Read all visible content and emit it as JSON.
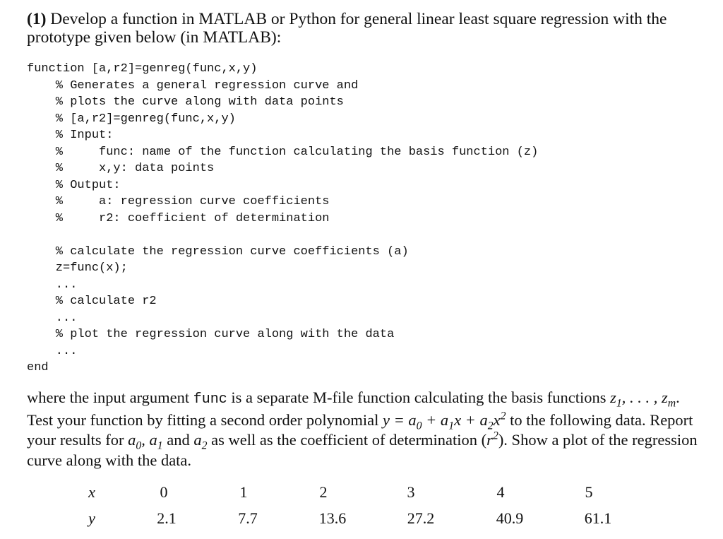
{
  "heading": {
    "number": "(1)",
    "text": "Develop a function in MATLAB or Python for general linear least square regression with the prototype given below (in MATLAB):"
  },
  "code_lines": [
    "function [a,r2]=genreg(func,x,y)",
    "    % Generates a general regression curve and",
    "    % plots the curve along with data points",
    "    % [a,r2]=genreg(func,x,y)",
    "    % Input:",
    "    %     func: name of the function calculating the basis function (z)",
    "    %     x,y: data points",
    "    % Output:",
    "    %     a: regression curve coefficients",
    "    %     r2: coefficient of determination",
    "",
    "    % calculate the regression curve coefficients (a)",
    "    z=func(x);",
    "    ...",
    "    % calculate r2",
    "    ...",
    "    % plot the regression curve along with the data",
    "    ...",
    "end"
  ],
  "paragraph": {
    "t1": "where the input argument ",
    "code_word": "func",
    "t2": " is a separate M-file function calculating the basis functions ",
    "t3": ". Test your function by fitting a second order polynomial ",
    "t4": " to the following data. Report your results for ",
    "t5": " and ",
    "t6": " as well as the coefficient of determination (",
    "t7": "). Show a plot of the regression curve along with the data."
  },
  "table": {
    "x_label": "x",
    "y_label": "y",
    "x_values": [
      "0",
      "1",
      "2",
      "3",
      "4",
      "5"
    ],
    "y_values": [
      "2.1",
      "7.7",
      "13.6",
      "27.2",
      "40.9",
      "61.1"
    ]
  }
}
